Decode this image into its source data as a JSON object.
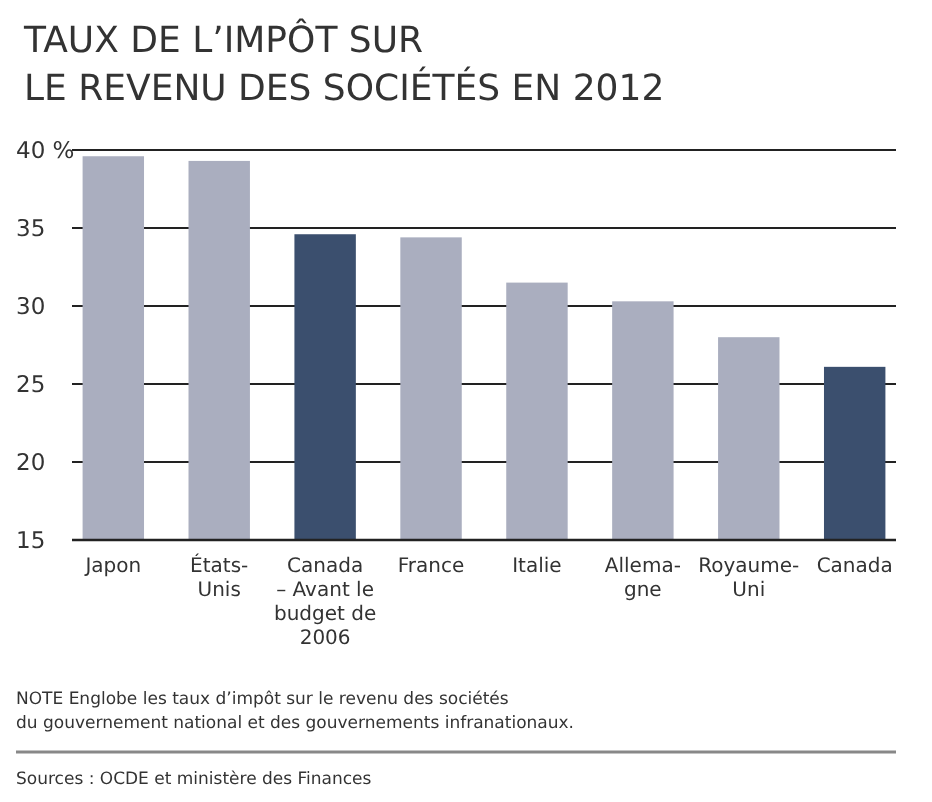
{
  "chart_data": {
    "type": "bar",
    "title": "TAUX DE L’IMPÔT SUR\nLE REVENU DES SOCIÉTÉS EN 2012",
    "categories": [
      "Japon",
      "États-\nUnis",
      "Canada\n– Avant le\nbudget de\n2006",
      "France",
      "Italie",
      "Allema-\ngne",
      "Royaume-\nUni",
      "Canada"
    ],
    "values": [
      39.6,
      39.3,
      34.6,
      34.4,
      31.5,
      30.3,
      28.0,
      26.1
    ],
    "colors": [
      "#aaaebf",
      "#aaaebf",
      "#3b4f6e",
      "#aaaebf",
      "#aaaebf",
      "#aaaebf",
      "#aaaebf",
      "#3b4f6e"
    ],
    "ylim": [
      15,
      40
    ],
    "yticks": [
      15,
      20,
      25,
      30,
      35,
      {
        "value": 40,
        "label": "40 %"
      }
    ],
    "grid": "y",
    "annotations": [
      "NOTE  Englobe les taux d’impôt sur le revenu des sociétés\ndu gouvernement national et des gouvernements infranationaux.",
      "Sources : OCDE et ministère des Finances"
    ]
  }
}
